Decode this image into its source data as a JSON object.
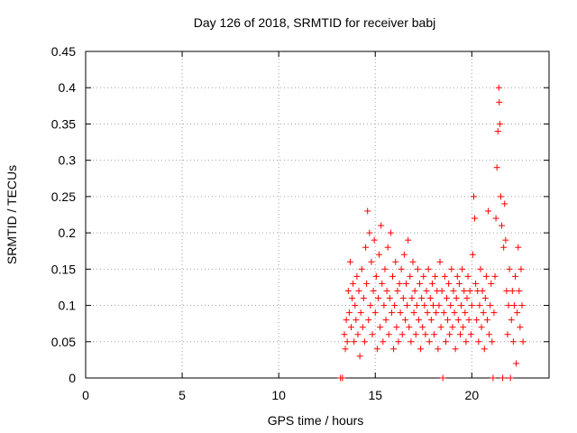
{
  "chart_data": {
    "type": "scatter",
    "title": "Day 126 of 2018, SRMTID for receiver babj",
    "xlabel": "GPS time / hours",
    "ylabel": "SRMTID / TECUs",
    "xlim": [
      0,
      24
    ],
    "ylim": [
      0,
      0.45
    ],
    "xticks": [
      0,
      5,
      10,
      15,
      20
    ],
    "xtick_labels": [
      "0",
      "5",
      "10",
      "15",
      "20"
    ],
    "yticks": [
      0,
      0.05,
      0.1,
      0.15,
      0.2,
      0.25,
      0.3,
      0.35,
      0.4,
      0.45
    ],
    "ytick_labels": [
      "0",
      "0.05",
      "0.1",
      "0.15",
      "0.2",
      "0.25",
      "0.3",
      "0.35",
      "0.4",
      "0.45"
    ],
    "grid": true,
    "marker": "+",
    "series_color": "#ff0000",
    "points": [
      [
        13.2,
        0.0
      ],
      [
        13.3,
        0.0
      ],
      [
        13.4,
        0.06
      ],
      [
        13.45,
        0.04
      ],
      [
        13.5,
        0.08
      ],
      [
        13.55,
        0.05
      ],
      [
        13.6,
        0.12
      ],
      [
        13.65,
        0.09
      ],
      [
        13.7,
        0.16
      ],
      [
        13.75,
        0.07
      ],
      [
        13.8,
        0.11
      ],
      [
        13.85,
        0.13
      ],
      [
        13.9,
        0.05
      ],
      [
        13.95,
        0.1
      ],
      [
        14.0,
        0.08
      ],
      [
        14.05,
        0.14
      ],
      [
        14.1,
        0.06
      ],
      [
        14.15,
        0.12
      ],
      [
        14.2,
        0.03
      ],
      [
        14.25,
        0.09
      ],
      [
        14.3,
        0.15
      ],
      [
        14.35,
        0.07
      ],
      [
        14.4,
        0.11
      ],
      [
        14.45,
        0.05
      ],
      [
        14.5,
        0.18
      ],
      [
        14.55,
        0.13
      ],
      [
        14.6,
        0.23
      ],
      [
        14.65,
        0.08
      ],
      [
        14.7,
        0.2
      ],
      [
        14.75,
        0.1
      ],
      [
        14.8,
        0.16
      ],
      [
        14.85,
        0.06
      ],
      [
        14.9,
        0.12
      ],
      [
        14.95,
        0.19
      ],
      [
        15.0,
        0.09
      ],
      [
        15.05,
        0.14
      ],
      [
        15.1,
        0.04
      ],
      [
        15.15,
        0.11
      ],
      [
        15.2,
        0.17
      ],
      [
        15.25,
        0.07
      ],
      [
        15.3,
        0.21
      ],
      [
        15.35,
        0.13
      ],
      [
        15.4,
        0.05
      ],
      [
        15.45,
        0.1
      ],
      [
        15.5,
        0.15
      ],
      [
        15.55,
        0.08
      ],
      [
        15.6,
        0.12
      ],
      [
        15.65,
        0.18
      ],
      [
        15.7,
        0.06
      ],
      [
        15.75,
        0.11
      ],
      [
        15.8,
        0.2
      ],
      [
        15.85,
        0.09
      ],
      [
        15.9,
        0.14
      ],
      [
        15.95,
        0.04
      ],
      [
        16.0,
        0.1
      ],
      [
        16.05,
        0.16
      ],
      [
        16.1,
        0.07
      ],
      [
        16.15,
        0.12
      ],
      [
        16.2,
        0.05
      ],
      [
        16.25,
        0.13
      ],
      [
        16.3,
        0.09
      ],
      [
        16.35,
        0.15
      ],
      [
        16.4,
        0.06
      ],
      [
        16.45,
        0.11
      ],
      [
        16.5,
        0.17
      ],
      [
        16.55,
        0.08
      ],
      [
        16.6,
        0.13
      ],
      [
        16.65,
        0.1
      ],
      [
        16.7,
        0.19
      ],
      [
        16.75,
        0.07
      ],
      [
        16.8,
        0.14
      ],
      [
        16.85,
        0.05
      ],
      [
        16.9,
        0.11
      ],
      [
        16.95,
        0.16
      ],
      [
        17.0,
        0.09
      ],
      [
        17.05,
        0.12
      ],
      [
        17.1,
        0.06
      ],
      [
        17.15,
        0.1
      ],
      [
        17.2,
        0.15
      ],
      [
        17.25,
        0.08
      ],
      [
        17.3,
        0.13
      ],
      [
        17.35,
        0.04
      ],
      [
        17.4,
        0.11
      ],
      [
        17.45,
        0.07
      ],
      [
        17.5,
        0.14
      ],
      [
        17.55,
        0.1
      ],
      [
        17.6,
        0.06
      ],
      [
        17.65,
        0.12
      ],
      [
        17.7,
        0.09
      ],
      [
        17.75,
        0.15
      ],
      [
        17.8,
        0.05
      ],
      [
        17.85,
        0.11
      ],
      [
        17.9,
        0.08
      ],
      [
        17.95,
        0.13
      ],
      [
        18.0,
        0.1
      ],
      [
        18.05,
        0.06
      ],
      [
        18.1,
        0.14
      ],
      [
        18.15,
        0.09
      ],
      [
        18.2,
        0.12
      ],
      [
        18.25,
        0.04
      ],
      [
        18.3,
        0.1
      ],
      [
        18.35,
        0.16
      ],
      [
        18.4,
        0.07
      ],
      [
        18.45,
        0.12
      ],
      [
        18.5,
        0.0
      ],
      [
        18.55,
        0.09
      ],
      [
        18.6,
        0.14
      ],
      [
        18.65,
        0.05
      ],
      [
        18.7,
        0.11
      ],
      [
        18.75,
        0.08
      ],
      [
        18.8,
        0.13
      ],
      [
        18.85,
        0.06
      ],
      [
        18.9,
        0.1
      ],
      [
        18.95,
        0.15
      ],
      [
        19.0,
        0.07
      ],
      [
        19.05,
        0.12
      ],
      [
        19.1,
        0.09
      ],
      [
        19.15,
        0.04
      ],
      [
        19.2,
        0.11
      ],
      [
        19.25,
        0.14
      ],
      [
        19.3,
        0.08
      ],
      [
        19.35,
        0.13
      ],
      [
        19.4,
        0.06
      ],
      [
        19.45,
        0.1
      ],
      [
        19.5,
        0.15
      ],
      [
        19.55,
        0.07
      ],
      [
        19.6,
        0.12
      ],
      [
        19.65,
        0.09
      ],
      [
        19.7,
        0.05
      ],
      [
        19.75,
        0.11
      ],
      [
        19.8,
        0.14
      ],
      [
        19.85,
        0.08
      ],
      [
        19.9,
        0.12
      ],
      [
        19.95,
        0.06
      ],
      [
        20.0,
        0.1
      ],
      [
        20.05,
        0.17
      ],
      [
        20.1,
        0.25
      ],
      [
        20.15,
        0.22
      ],
      [
        20.2,
        0.13
      ],
      [
        20.25,
        0.08
      ],
      [
        20.3,
        0.12
      ],
      [
        20.35,
        0.05
      ],
      [
        20.4,
        0.1
      ],
      [
        20.45,
        0.15
      ],
      [
        20.5,
        0.07
      ],
      [
        20.55,
        0.12
      ],
      [
        20.6,
        0.09
      ],
      [
        20.65,
        0.04
      ],
      [
        20.7,
        0.11
      ],
      [
        20.75,
        0.14
      ],
      [
        20.8,
        0.08
      ],
      [
        20.85,
        0.23
      ],
      [
        20.9,
        0.06
      ],
      [
        20.95,
        0.1
      ],
      [
        21.0,
        0.13
      ],
      [
        21.05,
        0.05
      ],
      [
        21.1,
        0.0
      ],
      [
        21.15,
        0.09
      ],
      [
        21.2,
        0.14
      ],
      [
        21.25,
        0.22
      ],
      [
        21.3,
        0.29
      ],
      [
        21.35,
        0.34
      ],
      [
        21.4,
        0.4
      ],
      [
        21.42,
        0.38
      ],
      [
        21.45,
        0.35
      ],
      [
        21.5,
        0.25
      ],
      [
        21.55,
        0.21
      ],
      [
        21.6,
        0.0
      ],
      [
        21.65,
        0.18
      ],
      [
        21.7,
        0.24
      ],
      [
        21.75,
        0.19
      ],
      [
        21.8,
        0.12
      ],
      [
        21.85,
        0.06
      ],
      [
        21.9,
        0.1
      ],
      [
        21.95,
        0.15
      ],
      [
        22.0,
        0.0
      ],
      [
        22.05,
        0.08
      ],
      [
        22.1,
        0.12
      ],
      [
        22.15,
        0.05
      ],
      [
        22.2,
        0.1
      ],
      [
        22.25,
        0.14
      ],
      [
        22.3,
        0.02
      ],
      [
        22.35,
        0.09
      ],
      [
        22.4,
        0.18
      ],
      [
        22.45,
        0.12
      ],
      [
        22.5,
        0.07
      ],
      [
        22.55,
        0.15
      ],
      [
        22.6,
        0.1
      ],
      [
        22.65,
        0.05
      ]
    ]
  }
}
